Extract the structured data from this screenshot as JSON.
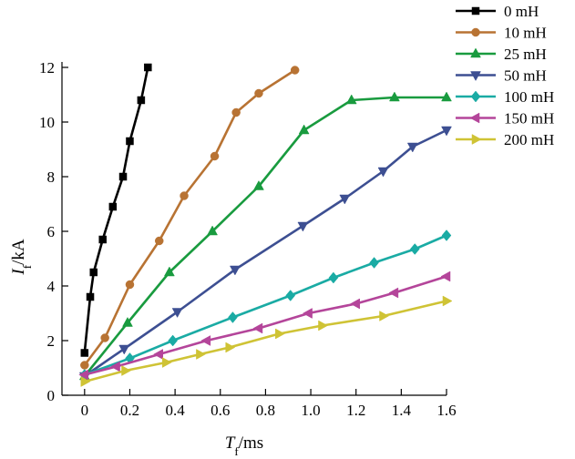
{
  "chart_data": {
    "type": "line",
    "title": "",
    "xlabel": {
      "main": "T",
      "sub": "f",
      "unit": "/ms"
    },
    "ylabel": {
      "main": "I",
      "sub": "f",
      "unit": "/kA"
    },
    "xlim": [
      -0.1,
      1.6
    ],
    "ylim": [
      0,
      12.2
    ],
    "xticks": [
      0,
      0.2,
      0.4,
      0.6,
      0.8,
      1.0,
      1.2,
      1.4,
      1.6
    ],
    "xtick_labels": [
      "0",
      "0.2",
      "0.4",
      "0.6",
      "0.8",
      "1.0",
      "1.2",
      "1.4",
      "1.6"
    ],
    "yticks": [
      0,
      2,
      4,
      6,
      8,
      10,
      12
    ],
    "ytick_labels": [
      "0",
      "2",
      "4",
      "6",
      "8",
      "10",
      "12"
    ],
    "legend_position": "top-right, outside plot",
    "grid": false,
    "series": [
      {
        "name": "0 mH",
        "color": "#000000",
        "marker": "square",
        "x": [
          0.0,
          0.025,
          0.04,
          0.08,
          0.125,
          0.17,
          0.2,
          0.25,
          0.28
        ],
        "y": [
          1.55,
          3.6,
          4.5,
          5.7,
          6.9,
          8.0,
          9.3,
          10.8,
          12.0
        ]
      },
      {
        "name": "10 mH",
        "color": "#B87333",
        "marker": "circle",
        "x": [
          0.0,
          0.09,
          0.2,
          0.33,
          0.44,
          0.575,
          0.67,
          0.77,
          0.93
        ],
        "y": [
          1.1,
          2.1,
          4.05,
          5.65,
          7.3,
          8.75,
          10.35,
          11.05,
          11.9
        ]
      },
      {
        "name": "25 mH",
        "color": "#199B3F",
        "marker": "triangle-up",
        "x": [
          0.0,
          0.19,
          0.375,
          0.565,
          0.77,
          0.97,
          1.18,
          1.37,
          1.6
        ],
        "y": [
          0.7,
          2.65,
          4.5,
          6.0,
          7.65,
          9.7,
          10.8,
          10.9,
          10.9
        ]
      },
      {
        "name": "50 mH",
        "color": "#3D4F92",
        "marker": "triangle-down",
        "x": [
          0.0,
          0.175,
          0.41,
          0.665,
          0.965,
          1.15,
          1.32,
          1.45,
          1.6
        ],
        "y": [
          0.7,
          1.7,
          3.05,
          4.6,
          6.2,
          7.2,
          8.2,
          9.1,
          9.7
        ]
      },
      {
        "name": "100 mH",
        "color": "#1AABA4",
        "marker": "diamond",
        "x": [
          0.0,
          0.2,
          0.39,
          0.655,
          0.91,
          1.1,
          1.28,
          1.46,
          1.6
        ],
        "y": [
          0.75,
          1.35,
          2.0,
          2.85,
          3.65,
          4.3,
          4.85,
          5.35,
          5.85
        ]
      },
      {
        "name": "150 mH",
        "color": "#B4459A",
        "marker": "triangle-left",
        "x": [
          0.0,
          0.14,
          0.33,
          0.54,
          0.77,
          0.99,
          1.2,
          1.37,
          1.6
        ],
        "y": [
          0.75,
          1.05,
          1.5,
          2.0,
          2.45,
          3.0,
          3.35,
          3.75,
          4.35
        ]
      },
      {
        "name": "200 mH",
        "color": "#CFC335",
        "marker": "triangle-right",
        "x": [
          0.0,
          0.18,
          0.36,
          0.51,
          0.64,
          0.86,
          1.05,
          1.32,
          1.6
        ],
        "y": [
          0.5,
          0.9,
          1.2,
          1.5,
          1.75,
          2.25,
          2.55,
          2.9,
          3.45
        ]
      }
    ]
  }
}
